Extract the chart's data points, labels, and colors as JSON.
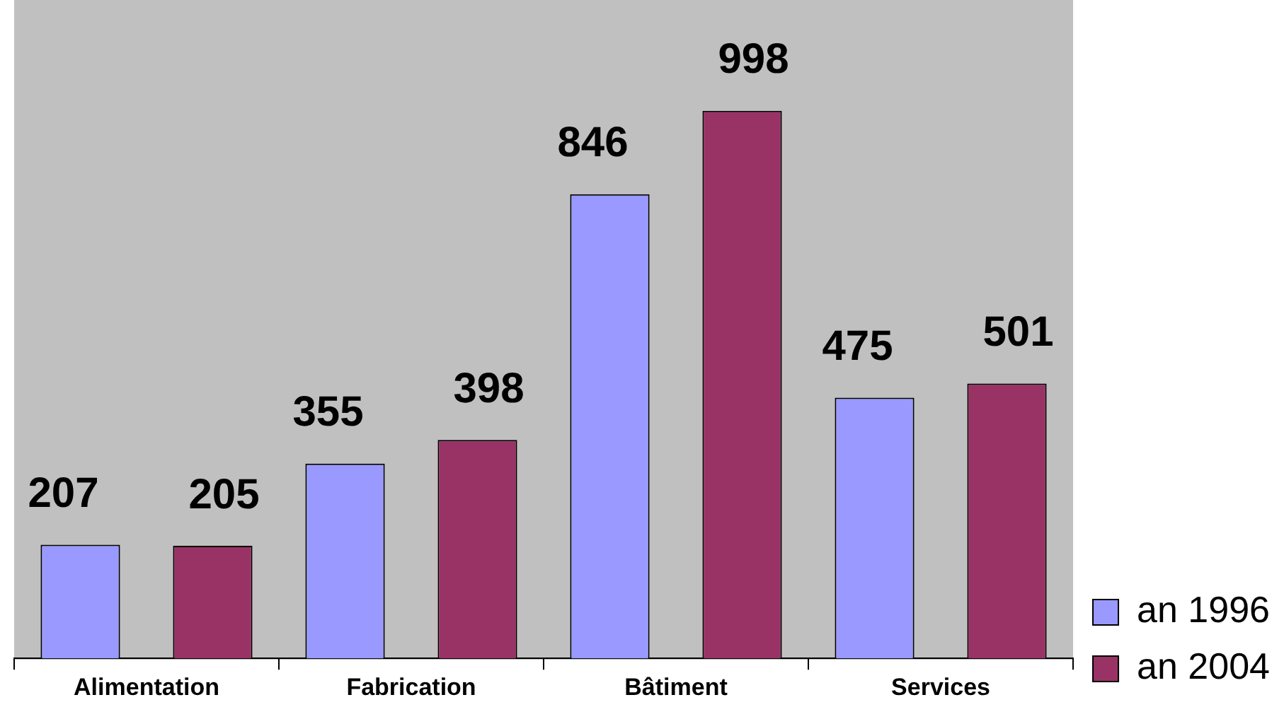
{
  "chart_data": {
    "type": "bar",
    "categories": [
      "Alimentation",
      "Fabrication",
      "Bâtiment",
      "Services"
    ],
    "series": [
      {
        "name": "an 1996",
        "color": "#9999ff",
        "values": [
          207,
          355,
          846,
          475
        ]
      },
      {
        "name": "an 2004",
        "color": "#993366",
        "values": [
          205,
          398,
          998,
          501
        ]
      }
    ],
    "data_labels": true,
    "grid": false,
    "legend": "bottom right"
  }
}
